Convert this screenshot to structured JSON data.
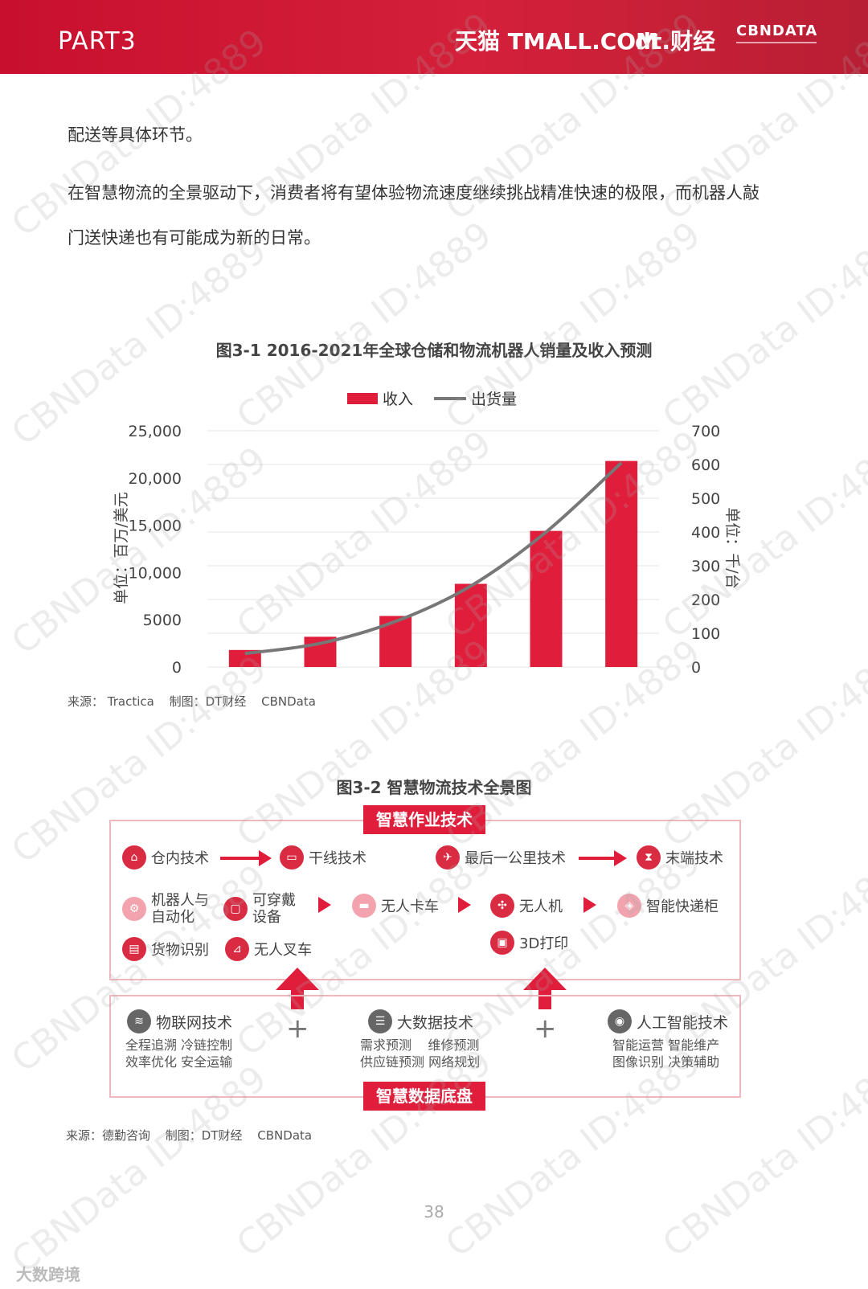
{
  "header": {
    "part": "PART3",
    "brand_tmall": "天猫 TMALL.COM",
    "brand_dt": "dt.财经",
    "brand_cbn": "CBNDATA"
  },
  "body_text": {
    "line1": "配送等具体环节。",
    "line2": "在智慧物流的全景驱动下，消费者将有望体验物流速度继续挑战精准快速的极限，而机器人敲",
    "line3": "门送快递也有可能成为新的日常。"
  },
  "figure1": {
    "title": "图3-1 2016-2021年全球仓储和物流机器人销量及收入预测",
    "source": [
      "来源： Tractica",
      "制图：DT财经",
      "CBNData"
    ]
  },
  "chart_data": {
    "type": "bar",
    "title": "图3-1 2016-2021年全球仓储和物流机器人销量及收入预测",
    "categories": [
      "",
      "",
      "",
      "",
      "",
      ""
    ],
    "series": [
      {
        "name": "收入",
        "kind": "bar",
        "axis": "left",
        "color": "#e01e3c",
        "values": [
          1800,
          3200,
          5400,
          8800,
          14400,
          21800
        ]
      },
      {
        "name": "出货量",
        "kind": "line",
        "axis": "right",
        "color": "#777777",
        "values": [
          40,
          70,
          135,
          240,
          400,
          605
        ]
      }
    ],
    "ylabel": "单位：百万/美元",
    "y2label": "单位：千/台",
    "ylim": [
      0,
      25000
    ],
    "y2lim": [
      0,
      700
    ],
    "yticks": [
      "0",
      "5000",
      "10,000",
      "15,000",
      "20,000",
      "25,000"
    ],
    "y2ticks": [
      "0",
      "100",
      "200",
      "300",
      "400",
      "500",
      "600",
      "700"
    ],
    "grid": true,
    "legend_position": "top-center"
  },
  "figure2": {
    "title": "图3-2 智慧物流技术全景图",
    "top_tag": "智慧作业技术",
    "bottom_tag": "智慧数据底盘",
    "row1": [
      "仓内技术",
      "干线技术",
      "最后一公里技术",
      "末端技术"
    ],
    "robot": "机器人与自动化",
    "robot_l1": "机器人与",
    "robot_l2": "自动化",
    "wear_l1": "可穿戴",
    "wear_l2": "设备",
    "truck": "无人卡车",
    "drone": "无人机",
    "locker": "智能快递柜",
    "goods": "货物识别",
    "forklift": "无人叉车",
    "print3d": "3D打印",
    "tech": [
      {
        "title": "物联网技术",
        "items": [
          "全程追溯 冷链控制",
          "效率优化 安全运输"
        ]
      },
      {
        "title": "大数据技术",
        "items": [
          "需求预测    维修预测",
          "供应链预测 网络规划"
        ]
      },
      {
        "title": "人工智能技术",
        "items": [
          "智能运营 智能维产",
          "图像识别 决策辅助"
        ]
      }
    ],
    "plus": "+",
    "source": [
      "来源：德勤咨询",
      "制图：DT财经",
      "CBNData"
    ]
  },
  "page_number": "38",
  "footer_logo": "大数跨境",
  "watermark": "CBNData ID:4889"
}
